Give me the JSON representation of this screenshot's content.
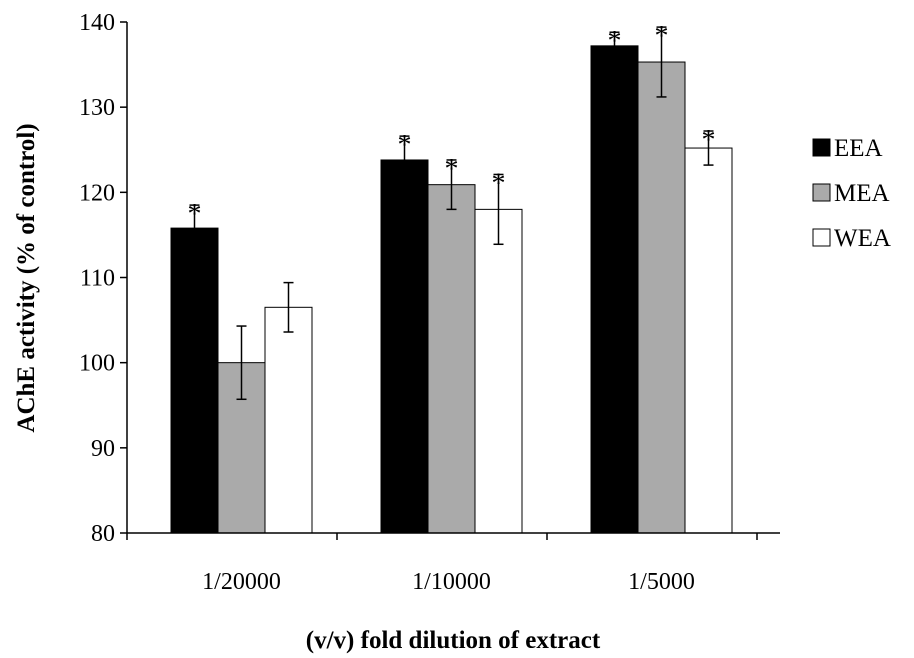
{
  "chart_data": {
    "type": "bar",
    "title": "",
    "xlabel": "(v/v) fold dilution of extract",
    "ylabel": "AChE activity (% of control)",
    "categories": [
      "1/20000",
      "1/10000",
      "1/5000"
    ],
    "ylim": [
      80,
      140
    ],
    "yticks": [
      80,
      90,
      100,
      110,
      120,
      130,
      140
    ],
    "grid": false,
    "legend_position": "right",
    "series": [
      {
        "name": "EEA",
        "color": "#000000",
        "values": [
          115.8,
          123.8,
          137.2
        ],
        "errors": [
          2.7,
          2.8,
          1.6
        ],
        "significance": [
          "*",
          "*",
          "*"
        ]
      },
      {
        "name": "MEA",
        "color": "#aaaaaa",
        "values": [
          100.0,
          120.9,
          135.3
        ],
        "errors": [
          4.3,
          2.9,
          4.1
        ],
        "significance": [
          "",
          "*",
          "*"
        ]
      },
      {
        "name": "WEA",
        "color": "#ffffff",
        "values": [
          106.5,
          118.0,
          125.2
        ],
        "errors": [
          2.9,
          4.1,
          2.0
        ],
        "significance": [
          "",
          "*",
          "*"
        ]
      }
    ]
  }
}
